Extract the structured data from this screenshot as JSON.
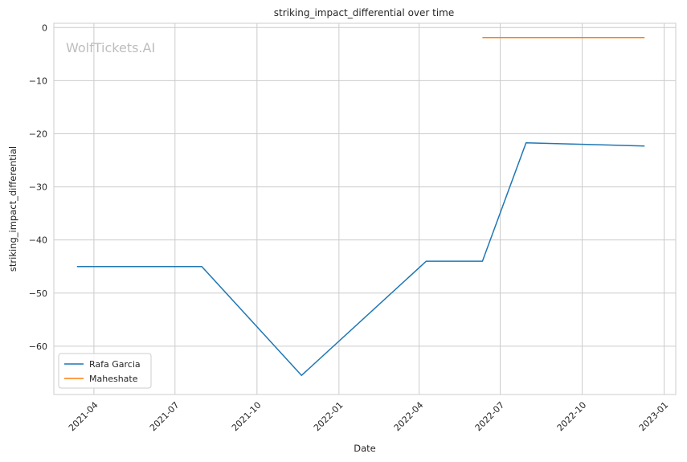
{
  "chart_data": {
    "type": "line",
    "title": "striking_impact_differential over time",
    "xlabel": "Date",
    "ylabel": "striking_impact_differential",
    "watermark": "WolfTickets.AI",
    "x_ticks": [
      "2021-04-01",
      "2021-07-01",
      "2021-10-01",
      "2022-01-01",
      "2022-04-01",
      "2022-07-01",
      "2022-10-01",
      "2023-01-01"
    ],
    "x_tick_labels": [
      "2021-04",
      "2021-07",
      "2021-10",
      "2022-01",
      "2022-04",
      "2022-07",
      "2022-10",
      "2023-01"
    ],
    "xlim": [
      "2021-02-15",
      "2023-01-14"
    ],
    "y_ticks": [
      0,
      -10,
      -20,
      -30,
      -40,
      -50,
      -60
    ],
    "y_tick_labels": [
      "0",
      "−10",
      "−20",
      "−30",
      "−40",
      "−50",
      "−60"
    ],
    "ylim": [
      -69.1,
      0.8
    ],
    "grid": true,
    "legend_position": "lower-left",
    "series": [
      {
        "name": "Rafa Garcia",
        "color": "#1f77b4",
        "points": [
          {
            "x": "2021-03-13",
            "y": -45.0
          },
          {
            "x": "2021-07-31",
            "y": -45.0
          },
          {
            "x": "2021-11-20",
            "y": -65.5
          },
          {
            "x": "2022-04-09",
            "y": -44.0
          },
          {
            "x": "2022-06-11",
            "y": -44.0
          },
          {
            "x": "2022-07-30",
            "y": -21.7
          },
          {
            "x": "2022-12-10",
            "y": -22.3
          }
        ]
      },
      {
        "name": "Maheshate",
        "color": "#ff7f0e",
        "points": [
          {
            "x": "2022-06-11",
            "y": -1.9
          },
          {
            "x": "2022-12-10",
            "y": -1.9
          }
        ]
      }
    ]
  }
}
